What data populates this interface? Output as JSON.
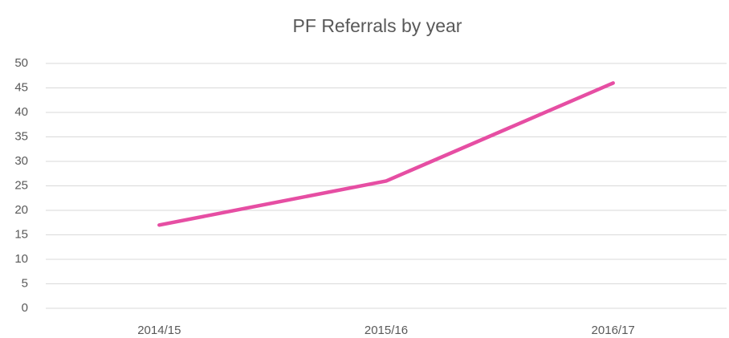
{
  "chart_data": {
    "type": "line",
    "title": "PF Referrals by year",
    "categories": [
      "2014/15",
      "2015/16",
      "2016/17"
    ],
    "values": [
      17,
      26,
      46
    ],
    "color": "#e64ea3",
    "ylim": [
      0,
      50
    ],
    "yticks": [
      0,
      5,
      10,
      15,
      20,
      25,
      30,
      35,
      40,
      45,
      50
    ],
    "grid": true
  }
}
